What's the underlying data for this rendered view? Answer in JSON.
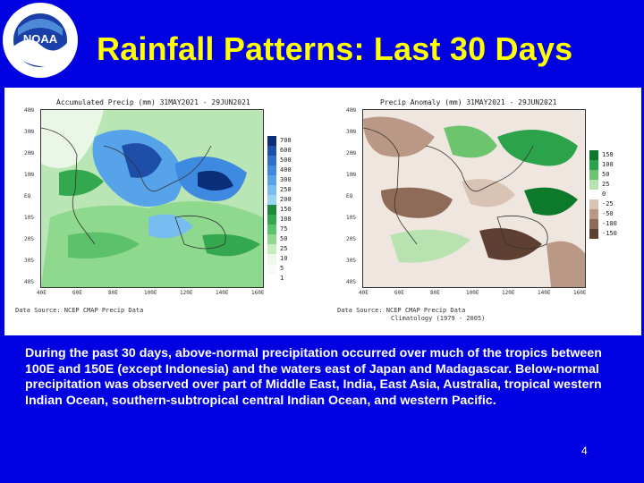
{
  "slide": {
    "title": "Rainfall Patterns: Last 30 Days",
    "body": "During the past 30 days, above-normal precipitation occurred over much of the tropics between 100E and 150E (except Indonesia) and the waters east of Japan and Madagascar. Below-normal precipitation was observed over part of Middle East, India, East Asia, Australia, tropical western Indian Ocean, southern-subtropical central Indian Ocean, and western Pacific.",
    "page_number": "4"
  },
  "logo": {
    "text": "NOAA",
    "ring_text": "NATIONAL OCEANIC AND ATMOSPHERIC ADMINISTRATION · U.S. DEPARTMENT OF COMMERCE"
  },
  "left_map": {
    "title": "Accumulated Precip (mm)  31MAY2021 - 29JUN2021",
    "source": "Data Source: NCEP CMAP Precip Data",
    "colorbar": [
      "700",
      "600",
      "500",
      "400",
      "300",
      "250",
      "200",
      "150",
      "100",
      "75",
      "50",
      "25",
      "10",
      "5",
      "1"
    ],
    "lat_labels": [
      "40N",
      "30N",
      "20N",
      "10N",
      "EQ",
      "10S",
      "20S",
      "30S",
      "40S"
    ],
    "lon_labels": [
      "40E",
      "60E",
      "80E",
      "100E",
      "120E",
      "140E",
      "160E"
    ]
  },
  "right_map": {
    "title": "Precip Anomaly (mm)  31MAY2021 - 29JUN2021",
    "source": "Data Source: NCEP CMAP Precip Data",
    "source2": "Climatology (1979 - 2005)",
    "colorbar": [
      "150",
      "100",
      "50",
      "25",
      "0",
      "-25",
      "-50",
      "-100",
      "-150"
    ],
    "lat_labels": [
      "40N",
      "30N",
      "20N",
      "10N",
      "EQ",
      "10S",
      "20S",
      "30S",
      "40S"
    ],
    "lon_labels": [
      "40E",
      "60E",
      "80E",
      "100E",
      "120E",
      "140E",
      "160E"
    ]
  },
  "colors": {
    "background": "#0000e0",
    "title": "#ffff00",
    "left_scale": [
      "#0b2e7a",
      "#1d4ea8",
      "#2f6fd0",
      "#3d8ae0",
      "#57a3ea",
      "#77bdf0",
      "#9ad3f4",
      "#1d8a3a",
      "#34a84e",
      "#5cc26a",
      "#8fd98f",
      "#c6ecc0",
      "#eef8ea",
      "#f7fbf5",
      "#ffffff"
    ],
    "right_scale": [
      "#0c7a2a",
      "#2aa34a",
      "#6cc56e",
      "#b8e3b0",
      "#ffffff",
      "#d9c3b4",
      "#b99885",
      "#8e6a58",
      "#5e4032"
    ]
  }
}
